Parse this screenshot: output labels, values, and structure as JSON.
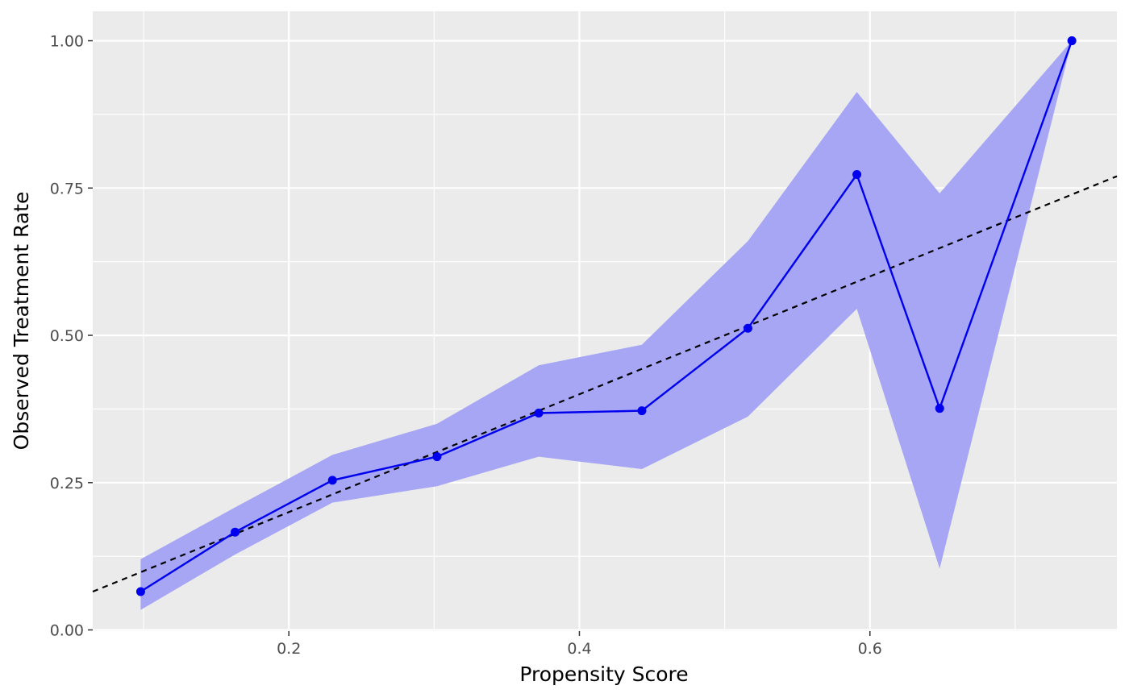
{
  "chart_data": {
    "type": "line",
    "title": "",
    "xlabel": "Propensity Score",
    "ylabel": "Observed Treatment Rate",
    "xlim": [
      0.065,
      0.77
    ],
    "ylim": [
      -0.002,
      1.05
    ],
    "x_ticks": [
      0.2,
      0.4,
      0.6
    ],
    "x_tick_labels": [
      "0.2",
      "0.4",
      "0.6"
    ],
    "y_ticks": [
      0.0,
      0.25,
      0.5,
      0.75,
      1.0
    ],
    "y_tick_labels": [
      "0.00",
      "0.25",
      "0.50",
      "0.75",
      "1.00"
    ],
    "grid": true,
    "legend": "none",
    "series": [
      {
        "x": [
          0.098,
          0.163,
          0.23,
          0.302,
          0.372,
          0.443,
          0.516,
          0.591,
          0.648,
          0.739
        ],
        "y": [
          0.065,
          0.166,
          0.254,
          0.294,
          0.368,
          0.372,
          0.512,
          0.773,
          0.376,
          1.0
        ],
        "lower": [
          0.034,
          0.128,
          0.216,
          0.244,
          0.294,
          0.273,
          0.362,
          0.545,
          0.104,
          1.0
        ],
        "upper": [
          0.12,
          0.208,
          0.297,
          0.35,
          0.449,
          0.484,
          0.66,
          0.913,
          0.741,
          1.0
        ]
      }
    ],
    "reference_line": {
      "slope": 1,
      "intercept": 0,
      "style": "dashed"
    },
    "colors": {
      "line": "#0000ee",
      "ribbon": "#a6a6f5",
      "reference": "#000000",
      "panel": "#ebebeb",
      "grid": "#ffffff"
    }
  }
}
